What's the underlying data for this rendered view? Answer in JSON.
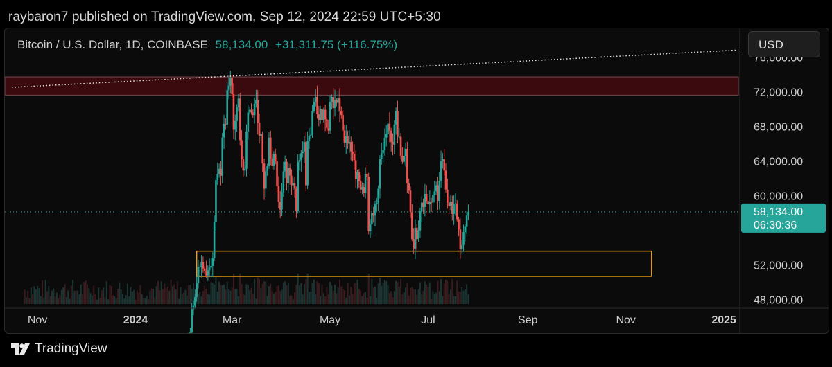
{
  "header": {
    "published": "raybaron7 published on TradingView.com, Sep 12, 2024 22:59 UTC+5:30"
  },
  "chart": {
    "symbol": "Bitcoin / U.S. Dollar, 1D, COINBASE",
    "last_price": "58,134.00",
    "change": "+31,311.75 (+116.75%)",
    "currency": "USD",
    "price_badge": "58,134.00",
    "countdown": "06:30:36"
  },
  "colors": {
    "up": "#26a69a",
    "down": "#ef5350",
    "accent_zone": "#f39c12",
    "resistance_fill": "#3a0a0e",
    "badge": "#26a69a"
  },
  "chart_data": {
    "type": "candlestick",
    "symbol": "BTCUSD",
    "interval": "1D",
    "price_axis": {
      "labels": [
        "76,000.00",
        "72,000.00",
        "68,000.00",
        "64,000.00",
        "60,000.00",
        "52,000.00",
        "48,000.00"
      ],
      "min": 47500,
      "max": 78500
    },
    "time_axis": {
      "labels": [
        "Nov",
        "2024",
        "Mar",
        "May",
        "Jul",
        "Sep",
        "Nov",
        "2025"
      ]
    },
    "range_start": "2023-10-16",
    "range_end": "2025-01-10",
    "candles_start": "2024-01-29",
    "closes": [
      42000,
      43100,
      42600,
      42800,
      43200,
      42700,
      44200,
      46900,
      47300,
      48300,
      49900,
      51800,
      51800,
      52300,
      51600,
      51300,
      50800,
      51400,
      51700,
      51900,
      52800,
      57000,
      61800,
      62500,
      63100,
      62300,
      66700,
      68300,
      68200,
      72200,
      72700,
      73600,
      71700,
      67600,
      68600,
      70200,
      71200,
      66400,
      64200,
      62900,
      63100,
      67400,
      69600,
      69900,
      69600,
      69300,
      70600,
      71000,
      68400,
      66900,
      67100,
      63700,
      60800,
      62800,
      63400,
      66700,
      64300,
      63400,
      64800,
      64000,
      61100,
      59300,
      58400,
      60400,
      62800,
      63900,
      61400,
      63200,
      62300,
      61200,
      61400,
      60800,
      58200,
      63900,
      64100,
      64900,
      65000,
      66200,
      61200,
      66300,
      66900,
      67000,
      69800,
      70800,
      71400,
      69400,
      68700,
      70000,
      68700,
      69900,
      68800,
      67800,
      67500,
      70800,
      71400,
      70100,
      71000,
      70700,
      71300,
      69800,
      69300,
      67500,
      66100,
      66900,
      66000,
      66200,
      65100,
      64800,
      64100,
      61900,
      62700,
      61700,
      60700,
      61000,
      60300,
      62500,
      62200,
      55900,
      56700,
      58000,
      57700,
      59000,
      59200,
      60800,
      64200,
      64900,
      65300,
      66700,
      67100,
      68300,
      67500,
      66200,
      65900,
      68200,
      69800,
      66800,
      66800,
      64600,
      63900,
      64600,
      65400,
      61400,
      60600,
      58100,
      55000,
      53900,
      56300,
      55000,
      56000,
      58200,
      59200,
      58700,
      60200,
      59400,
      59000,
      59300,
      59200,
      60100,
      60500,
      61200,
      59400,
      61700,
      64000,
      64200,
      62900,
      60700,
      59200,
      58800,
      59300,
      57900,
      59000,
      59100,
      57300,
      56100,
      53800,
      54300,
      55800,
      56400,
      57700,
      58134
    ],
    "shapes": {
      "resistance_zone": {
        "from": 71600,
        "to": 73700
      },
      "support_zone": {
        "from": 50700,
        "to": 53600,
        "start": "2024-02-08",
        "end": "2024-11-17"
      },
      "trendline": {
        "p1": [
          "2023-10-16",
          72500
        ],
        "p2": [
          "2025-01-10",
          76800
        ]
      },
      "last_price_line": 58134
    }
  }
}
